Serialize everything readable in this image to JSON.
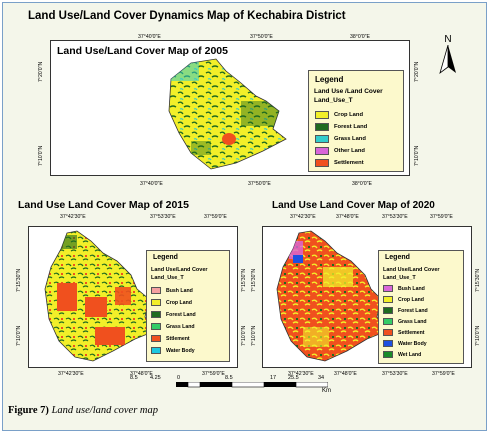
{
  "main_title": "Land Use/Land Cover Dynamics Map of Kechabira District",
  "maps": [
    {
      "title": "Land Use/Land Cover Map of 2005",
      "top_coords": [
        "37°40'0\"E",
        "37°50'0\"E",
        "38°0'0\"E"
      ],
      "bottom_coords": [
        "37°40'0\"E",
        "37°50'0\"E",
        "38°0'0\"E"
      ],
      "left_coords": [
        "7°20'0\"N",
        "7°10'0\"N"
      ],
      "right_coords": [
        "7°20'0\"N",
        "7°10'0\"N"
      ],
      "legend": {
        "title": "Legend",
        "subtitle1": "Land Use /Land Cover",
        "subtitle2": "Land_Use_T",
        "items": [
          {
            "label": "Crop Land",
            "color": "#f2ef29"
          },
          {
            "label": "Forest Land",
            "color": "#1f6b1f"
          },
          {
            "label": "Grass Land",
            "color": "#33cccc"
          },
          {
            "label": "Other Land",
            "color": "#d966d9"
          },
          {
            "label": "Settlement",
            "color": "#f0501e"
          }
        ]
      }
    },
    {
      "title": "Land Use Land Cover Map of 2015",
      "top_coords": [
        "37°42'30\"E",
        "37°53'30\"E",
        "37°59'0\"E"
      ],
      "bottom_coords": [
        "37°42'30\"E",
        "37°48'0\"E",
        "37°59'0\"E"
      ],
      "left_coords": [
        "7°15'30\"N",
        "7°10'0\"N"
      ],
      "right_coords": [
        "7°15'30\"N",
        "7°10'0\"N"
      ],
      "legend": {
        "title": "Legend",
        "subtitle1": "Land Use/Land Cover",
        "subtitle2": "Land_Use_T",
        "items": [
          {
            "label": "Bush Land",
            "color": "#f5a0a0"
          },
          {
            "label": "Crop Land",
            "color": "#f2ef29"
          },
          {
            "label": "Forest Land",
            "color": "#1f6b1f"
          },
          {
            "label": "Grass Land",
            "color": "#33cc66"
          },
          {
            "label": "Sttlement",
            "color": "#f0501e"
          },
          {
            "label": "Water Body",
            "color": "#1ec8e0"
          }
        ]
      }
    },
    {
      "title": "Land Use Land Cover Map of 2020",
      "top_coords": [
        "37°42'30\"E",
        "37°48'0\"E",
        "37°53'30\"E",
        "37°59'0\"E"
      ],
      "bottom_coords": [
        "37°42'30\"E",
        "37°48'0\"E",
        "37°53'30\"E",
        "37°59'0\"E"
      ],
      "left_coords": [
        "7°15'30\"N",
        "7°10'0\"N"
      ],
      "right_coords": [
        "7°15'30\"N",
        "7°10'0\"N"
      ],
      "legend": {
        "title": "Legend",
        "subtitle1": "Land Use/Land Cover",
        "subtitle2": "Land_Use_T",
        "items": [
          {
            "label": "Bush Land",
            "color": "#d966d9"
          },
          {
            "label": "Crop Land",
            "color": "#f2ef29"
          },
          {
            "label": "Forest Land",
            "color": "#1f6b1f"
          },
          {
            "label": "Grass Land",
            "color": "#33cc66"
          },
          {
            "label": "Settlement",
            "color": "#f0501e"
          },
          {
            "label": "Water Body",
            "color": "#1e50e0"
          },
          {
            "label": "Wet Land",
            "color": "#1a8c2a"
          }
        ]
      }
    }
  ],
  "scale": {
    "labels": [
      "8.5",
      "4.25",
      "0",
      "8.5",
      "17",
      "25.5",
      "34"
    ],
    "unit": "Km"
  },
  "north": "N",
  "caption": {
    "label": "Figure 7)",
    "text": "Land use/land cover map"
  },
  "colors": {
    "crop": "#f2ef29",
    "forest": "#1f6b1f",
    "grass": "#33cccc",
    "settlement": "#f0501e",
    "other": "#d966d9",
    "water": "#1e50e0"
  }
}
